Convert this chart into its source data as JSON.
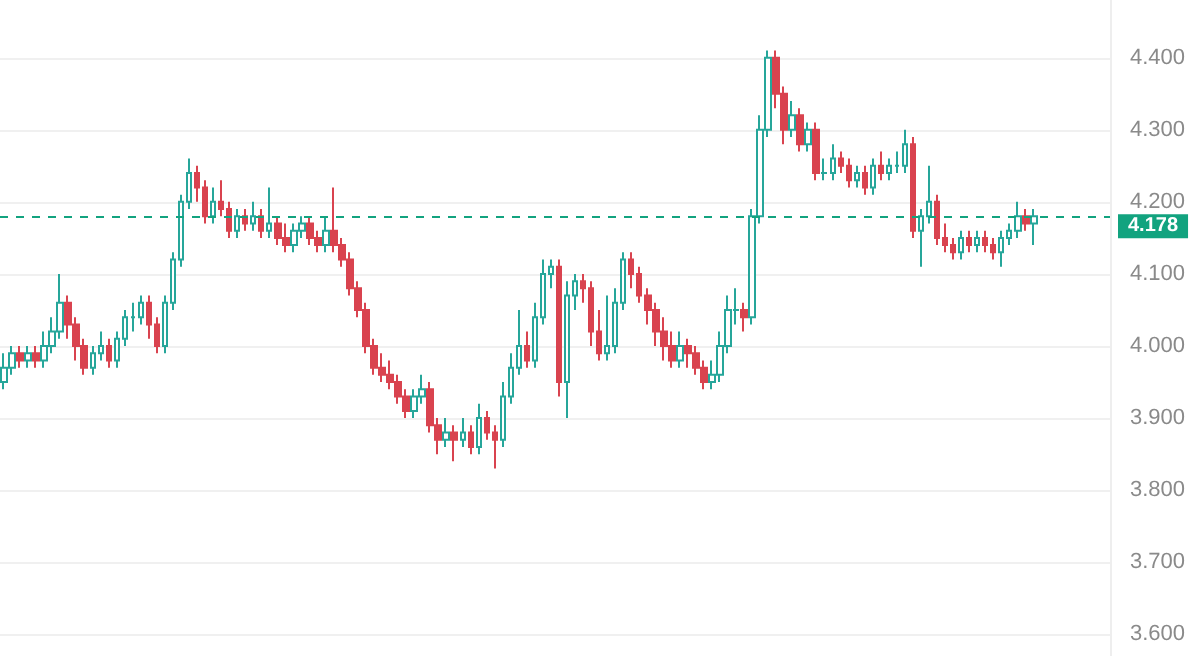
{
  "chart_data": {
    "type": "candlestick",
    "categories": [
      null,
      null,
      null,
      null,
      null,
      null,
      null,
      null,
      null,
      null,
      null,
      null,
      null,
      null,
      null,
      null,
      null,
      null,
      null,
      null,
      null,
      null,
      null,
      null,
      null,
      null,
      null,
      null,
      null,
      null,
      null,
      null,
      null,
      null,
      null,
      null,
      null,
      null,
      null,
      null,
      null,
      null,
      null,
      null,
      null,
      null,
      null,
      null,
      null,
      null,
      null,
      null,
      null,
      null,
      null,
      null,
      null,
      null,
      null,
      null,
      null,
      null,
      null,
      null,
      null,
      null,
      null,
      null,
      null,
      null,
      null,
      null,
      null,
      null,
      null,
      null,
      null,
      null,
      null,
      null,
      null,
      null,
      null,
      null,
      null,
      null,
      null,
      null,
      null,
      null,
      null,
      null,
      null,
      null,
      null,
      null,
      null,
      null,
      null,
      null,
      null,
      null,
      null,
      null,
      null,
      null,
      null,
      null,
      null,
      null,
      null,
      null,
      null,
      null,
      null,
      null,
      null,
      null,
      null,
      null,
      null,
      null,
      null,
      null,
      null,
      null,
      null,
      null,
      null,
      null,
      null,
      null,
      null,
      null,
      null,
      null,
      null,
      null
    ],
    "ohlc": [
      [
        3.95,
        3.99,
        3.94,
        3.97
      ],
      [
        3.97,
        4.0,
        3.96,
        3.99
      ],
      [
        3.99,
        4.0,
        3.97,
        3.98
      ],
      [
        3.98,
        4.0,
        3.97,
        3.99
      ],
      [
        3.99,
        4.0,
        3.97,
        3.98
      ],
      [
        3.98,
        4.02,
        3.97,
        4.0
      ],
      [
        4.0,
        4.04,
        3.99,
        4.02
      ],
      [
        4.02,
        4.1,
        4.01,
        4.06
      ],
      [
        4.06,
        4.07,
        4.01,
        4.03
      ],
      [
        4.03,
        4.04,
        3.98,
        4.0
      ],
      [
        4.0,
        4.01,
        3.96,
        3.97
      ],
      [
        3.97,
        4.0,
        3.96,
        3.99
      ],
      [
        3.99,
        4.02,
        3.98,
        4.0
      ],
      [
        4.0,
        4.01,
        3.97,
        3.98
      ],
      [
        3.98,
        4.02,
        3.97,
        4.01
      ],
      [
        4.01,
        4.05,
        4.0,
        4.04
      ],
      [
        4.04,
        4.06,
        4.02,
        4.04
      ],
      [
        4.04,
        4.07,
        4.03,
        4.06
      ],
      [
        4.06,
        4.07,
        4.01,
        4.03
      ],
      [
        4.03,
        4.04,
        3.99,
        4.0
      ],
      [
        4.0,
        4.07,
        3.99,
        4.06
      ],
      [
        4.06,
        4.13,
        4.05,
        4.12
      ],
      [
        4.12,
        4.21,
        4.11,
        4.2
      ],
      [
        4.2,
        4.26,
        4.19,
        4.24
      ],
      [
        4.24,
        4.25,
        4.2,
        4.22
      ],
      [
        4.22,
        4.23,
        4.17,
        4.18
      ],
      [
        4.18,
        4.22,
        4.17,
        4.2
      ],
      [
        4.2,
        4.23,
        4.18,
        4.19
      ],
      [
        4.19,
        4.2,
        4.15,
        4.16
      ],
      [
        4.16,
        4.19,
        4.15,
        4.18
      ],
      [
        4.18,
        4.19,
        4.16,
        4.17
      ],
      [
        4.17,
        4.2,
        4.16,
        4.18
      ],
      [
        4.18,
        4.19,
        4.15,
        4.16
      ],
      [
        4.16,
        4.22,
        4.15,
        4.17
      ],
      [
        4.17,
        4.18,
        4.14,
        4.15
      ],
      [
        4.15,
        4.17,
        4.13,
        4.14
      ],
      [
        4.14,
        4.17,
        4.13,
        4.16
      ],
      [
        4.16,
        4.18,
        4.15,
        4.17
      ],
      [
        4.17,
        4.18,
        4.14,
        4.15
      ],
      [
        4.15,
        4.16,
        4.13,
        4.14
      ],
      [
        4.14,
        4.18,
        4.13,
        4.16
      ],
      [
        4.16,
        4.22,
        4.13,
        4.14
      ],
      [
        4.14,
        4.15,
        4.11,
        4.12
      ],
      [
        4.12,
        4.13,
        4.07,
        4.08
      ],
      [
        4.08,
        4.09,
        4.04,
        4.05
      ],
      [
        4.05,
        4.06,
        3.99,
        4.0
      ],
      [
        4.0,
        4.01,
        3.96,
        3.97
      ],
      [
        3.97,
        3.99,
        3.95,
        3.96
      ],
      [
        3.96,
        3.98,
        3.94,
        3.95
      ],
      [
        3.95,
        3.96,
        3.92,
        3.93
      ],
      [
        3.93,
        3.94,
        3.9,
        3.91
      ],
      [
        3.91,
        3.94,
        3.9,
        3.93
      ],
      [
        3.93,
        3.96,
        3.92,
        3.94
      ],
      [
        3.94,
        3.95,
        3.88,
        3.89
      ],
      [
        3.89,
        3.9,
        3.85,
        3.87
      ],
      [
        3.87,
        3.9,
        3.86,
        3.88
      ],
      [
        3.88,
        3.89,
        3.84,
        3.87
      ],
      [
        3.87,
        3.9,
        3.86,
        3.88
      ],
      [
        3.88,
        3.89,
        3.85,
        3.86
      ],
      [
        3.86,
        3.92,
        3.85,
        3.9
      ],
      [
        3.9,
        3.91,
        3.87,
        3.88
      ],
      [
        3.88,
        3.89,
        3.83,
        3.87
      ],
      [
        3.87,
        3.95,
        3.86,
        3.93
      ],
      [
        3.93,
        3.99,
        3.92,
        3.97
      ],
      [
        3.97,
        4.05,
        3.96,
        4.0
      ],
      [
        4.0,
        4.02,
        3.97,
        3.98
      ],
      [
        3.98,
        4.06,
        3.97,
        4.04
      ],
      [
        4.04,
        4.12,
        4.03,
        4.1
      ],
      [
        4.1,
        4.12,
        4.08,
        4.11
      ],
      [
        4.11,
        4.12,
        3.93,
        3.95
      ],
      [
        3.95,
        4.09,
        3.9,
        4.07
      ],
      [
        4.07,
        4.1,
        4.05,
        4.09
      ],
      [
        4.09,
        4.1,
        4.06,
        4.08
      ],
      [
        4.08,
        4.09,
        4.0,
        4.02
      ],
      [
        4.02,
        4.05,
        3.98,
        3.99
      ],
      [
        3.99,
        4.07,
        3.98,
        4.0
      ],
      [
        4.0,
        4.08,
        3.99,
        4.06
      ],
      [
        4.06,
        4.13,
        4.05,
        4.12
      ],
      [
        4.12,
        4.13,
        4.08,
        4.1
      ],
      [
        4.1,
        4.11,
        4.06,
        4.07
      ],
      [
        4.07,
        4.08,
        4.03,
        4.05
      ],
      [
        4.05,
        4.06,
        4.0,
        4.02
      ],
      [
        4.02,
        4.04,
        3.98,
        4.0
      ],
      [
        4.0,
        4.02,
        3.97,
        3.98
      ],
      [
        3.98,
        4.02,
        3.97,
        4.0
      ],
      [
        4.0,
        4.01,
        3.97,
        3.99
      ],
      [
        3.99,
        4.0,
        3.96,
        3.97
      ],
      [
        3.97,
        3.98,
        3.94,
        3.95
      ],
      [
        3.95,
        3.98,
        3.94,
        3.96
      ],
      [
        3.96,
        4.02,
        3.95,
        4.0
      ],
      [
        4.0,
        4.07,
        3.99,
        4.05
      ],
      [
        4.05,
        4.08,
        4.03,
        4.05
      ],
      [
        4.05,
        4.06,
        4.02,
        4.04
      ],
      [
        4.04,
        4.19,
        4.03,
        4.18
      ],
      [
        4.18,
        4.32,
        4.17,
        4.3
      ],
      [
        4.3,
        4.41,
        4.29,
        4.4
      ],
      [
        4.4,
        4.41,
        4.33,
        4.35
      ],
      [
        4.35,
        4.36,
        4.28,
        4.3
      ],
      [
        4.3,
        4.34,
        4.29,
        4.32
      ],
      [
        4.32,
        4.33,
        4.27,
        4.28
      ],
      [
        4.28,
        4.31,
        4.27,
        4.3
      ],
      [
        4.3,
        4.31,
        4.23,
        4.24
      ],
      [
        4.24,
        4.26,
        4.23,
        4.24
      ],
      [
        4.24,
        4.28,
        4.23,
        4.26
      ],
      [
        4.26,
        4.27,
        4.24,
        4.25
      ],
      [
        4.25,
        4.26,
        4.22,
        4.23
      ],
      [
        4.23,
        4.25,
        4.22,
        4.24
      ],
      [
        4.24,
        4.25,
        4.21,
        4.22
      ],
      [
        4.22,
        4.26,
        4.21,
        4.25
      ],
      [
        4.25,
        4.27,
        4.23,
        4.24
      ],
      [
        4.24,
        4.26,
        4.23,
        4.25
      ],
      [
        4.25,
        4.27,
        4.24,
        4.25
      ],
      [
        4.25,
        4.3,
        4.24,
        4.28
      ],
      [
        4.28,
        4.29,
        4.15,
        4.16
      ],
      [
        4.16,
        4.19,
        4.11,
        4.18
      ],
      [
        4.18,
        4.25,
        4.17,
        4.2
      ],
      [
        4.2,
        4.21,
        4.14,
        4.15
      ],
      [
        4.15,
        4.17,
        4.13,
        4.14
      ],
      [
        4.14,
        4.15,
        4.12,
        4.13
      ],
      [
        4.13,
        4.16,
        4.12,
        4.15
      ],
      [
        4.15,
        4.16,
        4.13,
        4.14
      ],
      [
        4.14,
        4.16,
        4.13,
        4.15
      ],
      [
        4.15,
        4.16,
        4.13,
        4.14
      ],
      [
        4.14,
        4.15,
        4.12,
        4.13
      ],
      [
        4.13,
        4.16,
        4.11,
        4.15
      ],
      [
        4.15,
        4.17,
        4.14,
        4.16
      ],
      [
        4.16,
        4.2,
        4.15,
        4.18
      ],
      [
        4.18,
        4.19,
        4.16,
        4.17
      ],
      [
        4.17,
        4.19,
        4.14,
        4.18
      ],
      null,
      null,
      null,
      null,
      null,
      null,
      null,
      null,
      null
    ],
    "colors": [
      "#26a69a",
      "#26a69a",
      "#d9434f",
      "#26a69a",
      "#d9434f",
      "#26a69a",
      "#26a69a",
      "#26a69a",
      "#d9434f",
      "#d9434f",
      "#d9434f",
      "#26a69a",
      "#26a69a",
      "#d9434f",
      "#26a69a",
      "#26a69a",
      "#26a69a",
      "#26a69a",
      "#d9434f",
      "#d9434f",
      "#26a69a",
      "#26a69a",
      "#26a69a",
      "#26a69a",
      "#d9434f",
      "#d9434f",
      "#26a69a",
      "#d9434f",
      "#d9434f",
      "#26a69a",
      "#d9434f",
      "#26a69a",
      "#d9434f",
      "#26a69a",
      "#d9434f",
      "#d9434f",
      "#26a69a",
      "#26a69a",
      "#d9434f",
      "#d9434f",
      "#26a69a",
      "#d9434f",
      "#d9434f",
      "#d9434f",
      "#d9434f",
      "#d9434f",
      "#d9434f",
      "#d9434f",
      "#d9434f",
      "#d9434f",
      "#d9434f",
      "#26a69a",
      "#26a69a",
      "#d9434f",
      "#d9434f",
      "#26a69a",
      "#d9434f",
      "#26a69a",
      "#d9434f",
      "#26a69a",
      "#d9434f",
      "#d9434f",
      "#26a69a",
      "#26a69a",
      "#26a69a",
      "#d9434f",
      "#26a69a",
      "#26a69a",
      "#26a69a",
      "#d9434f",
      "#26a69a",
      "#26a69a",
      "#d9434f",
      "#d9434f",
      "#d9434f",
      "#26a69a",
      "#26a69a",
      "#26a69a",
      "#d9434f",
      "#d9434f",
      "#d9434f",
      "#d9434f",
      "#d9434f",
      "#d9434f",
      "#26a69a",
      "#d9434f",
      "#d9434f",
      "#d9434f",
      "#26a69a",
      "#26a69a",
      "#26a69a",
      "#26a69a",
      "#d9434f",
      "#26a69a",
      "#26a69a",
      "#26a69a",
      "#d9434f",
      "#d9434f",
      "#26a69a",
      "#d9434f",
      "#26a69a",
      "#d9434f",
      "#26a69a",
      "#26a69a",
      "#d9434f",
      "#d9434f",
      "#26a69a",
      "#d9434f",
      "#26a69a",
      "#d9434f",
      "#26a69a",
      "#26a69a",
      "#26a69a",
      "#d9434f",
      "#26a69a",
      "#26a69a",
      "#d9434f",
      "#d9434f",
      "#d9434f",
      "#26a69a",
      "#d9434f",
      "#26a69a",
      "#d9434f",
      "#d9434f",
      "#26a69a",
      "#26a69a",
      "#26a69a",
      "#d9434f",
      "#26a69a",
      null,
      null,
      null,
      null,
      null,
      null,
      null,
      null,
      null
    ],
    "ylim": [
      3.57,
      4.48
    ],
    "yticks": [
      {
        "value": 3.6,
        "label": "3.600"
      },
      {
        "value": 3.7,
        "label": "3.700"
      },
      {
        "value": 3.8,
        "label": "3.800"
      },
      {
        "value": 3.9,
        "label": "3.900"
      },
      {
        "value": 4.0,
        "label": "4.000"
      },
      {
        "value": 4.1,
        "label": "4.100"
      },
      {
        "value": 4.2,
        "label": "4.200"
      },
      {
        "value": 4.3,
        "label": "4.300"
      },
      {
        "value": 4.4,
        "label": "4.400"
      }
    ],
    "tick_labels": "y",
    "grid": "y",
    "ref_lines": [
      {
        "axis": "y",
        "value": 4.178,
        "label": "4.178",
        "color": "#12a37f",
        "line_style": "dashed"
      }
    ]
  }
}
